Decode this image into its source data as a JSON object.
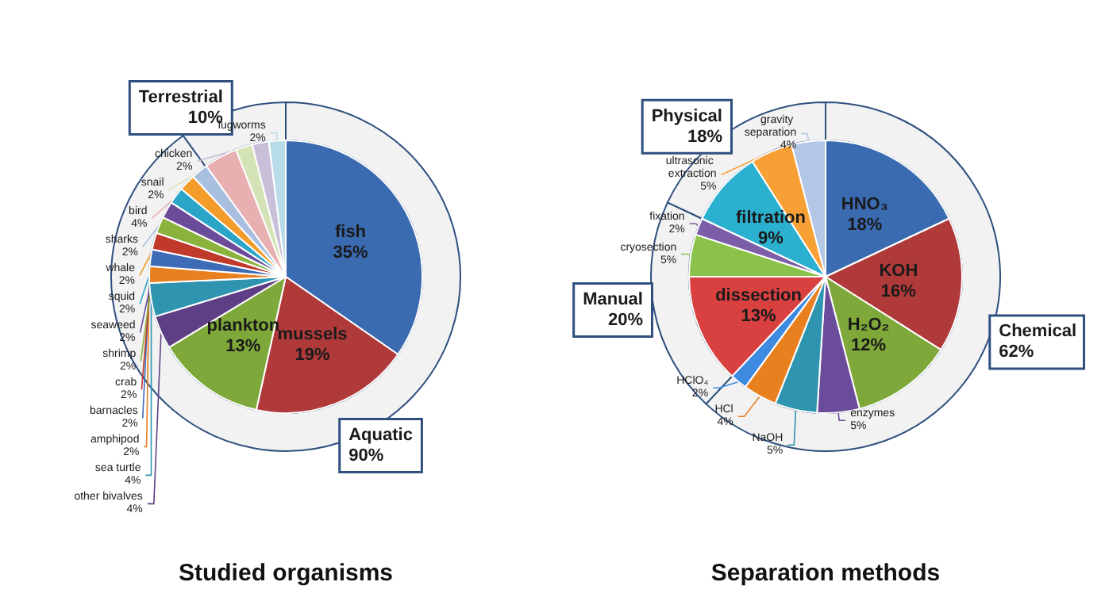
{
  "chart_data": [
    {
      "type": "pie",
      "title": "Studied organisms",
      "categories": [
        "fish",
        "mussels",
        "plankton",
        "other bivalves",
        "sea turtle",
        "amphipod",
        "barnacles",
        "crab",
        "shrimp",
        "seaweed",
        "squid",
        "whale",
        "sharks",
        "bird",
        "snail",
        "chicken",
        "lugworms"
      ],
      "values": [
        35,
        19,
        13,
        4,
        4,
        2,
        2,
        2,
        2,
        2,
        2,
        2,
        2,
        4,
        2,
        2,
        2
      ],
      "value_labels": [
        "35%",
        "19%",
        "13%",
        "4%",
        "4%",
        "2%",
        "2%",
        "2%",
        "2%",
        "2%",
        "2%",
        "2%",
        "2%",
        "4%",
        "2%",
        "2%",
        "2%"
      ],
      "colors": [
        "#3a6ab0",
        "#b03a3a",
        "#7fa83a",
        "#5e3f86",
        "#2e94b0",
        "#e8801f",
        "#3d6bb5",
        "#c0392b",
        "#8bb23d",
        "#6b4c9a",
        "#2aa5c7",
        "#f39c2a",
        "#a8bfe0",
        "#e8b0b0",
        "#d4e3b5",
        "#c8bfd8",
        "#b8dde8"
      ]
    },
    {
      "type": "donut",
      "categories": [
        "Aquatic",
        "Terrestrial"
      ],
      "values": [
        90,
        10
      ],
      "value_labels": [
        "90%",
        "10%"
      ],
      "colors": [
        "#f2f2f2",
        "#f2f2f2"
      ]
    },
    {
      "type": "pie",
      "title": "Separation methods",
      "categories": [
        "HNO₃",
        "KOH",
        "H₂O₂",
        "enzymes",
        "NaOH",
        "HCl",
        "HClO₄",
        "dissection",
        "cryosection",
        "fixation",
        "filtration",
        "ultrasonic extraction",
        "gravity separation"
      ],
      "values": [
        18,
        16,
        12,
        5,
        5,
        4,
        2,
        13,
        5,
        2,
        9,
        5,
        4
      ],
      "value_labels": [
        "18%",
        "16%",
        "12%",
        "5%",
        "5%",
        "4%",
        "2%",
        "13%",
        "5%",
        "2%",
        "9%",
        "5%",
        "4%"
      ],
      "colors": [
        "#3a6ab0",
        "#b03a3a",
        "#7fa83a",
        "#6b4c9a",
        "#2e94b0",
        "#e8801f",
        "#3d8ae0",
        "#d94040",
        "#8bc34a",
        "#7b5ea7",
        "#2bb0d0",
        "#f7a035",
        "#b4c7e7"
      ]
    },
    {
      "type": "donut",
      "categories": [
        "Chemical",
        "Manual",
        "Physical"
      ],
      "values": [
        62,
        20,
        18
      ],
      "value_labels": [
        "62%",
        "20%",
        "18%"
      ],
      "colors": [
        "#f2f2f2",
        "#f2f2f2",
        "#f2f2f2"
      ]
    }
  ]
}
